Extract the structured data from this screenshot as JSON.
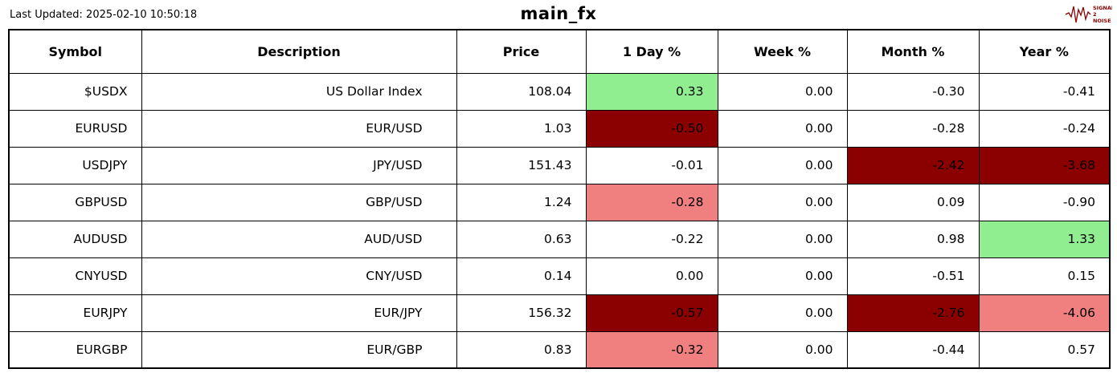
{
  "header": {
    "last_updated": "Last Updated: 2025-02-10 10:50:18",
    "logo": {
      "line1": "SIGNAL",
      "line2": "2",
      "line3": "NOISE"
    }
  },
  "colors": {
    "green": "#90ee90",
    "darkred": "#8b0000",
    "salmon": "#f08080",
    "border": "#000000"
  },
  "chart_data": {
    "type": "table",
    "title": "main_fx",
    "columns": [
      "Symbol",
      "Description",
      "Price",
      "1 Day %",
      "Week %",
      "Month %",
      "Year %"
    ],
    "column_keys": [
      "symbol",
      "description",
      "price",
      "day_pct",
      "week_pct",
      "month_pct",
      "year_pct"
    ],
    "rows": [
      {
        "cells": [
          "$USDX",
          "US Dollar Index",
          "108.04",
          "0.33",
          "0.00",
          "-0.30",
          "-0.41"
        ],
        "highlight": [
          "",
          "",
          "",
          "green",
          "",
          "",
          ""
        ]
      },
      {
        "cells": [
          "EURUSD",
          "EUR/USD",
          "1.03",
          "-0.50",
          "0.00",
          "-0.28",
          "-0.24"
        ],
        "highlight": [
          "",
          "",
          "",
          "darkred",
          "",
          "",
          ""
        ]
      },
      {
        "cells": [
          "USDJPY",
          "JPY/USD",
          "151.43",
          "-0.01",
          "0.00",
          "-2.42",
          "-3.68"
        ],
        "highlight": [
          "",
          "",
          "",
          "",
          "",
          "darkred",
          "darkred"
        ]
      },
      {
        "cells": [
          "GBPUSD",
          "GBP/USD",
          "1.24",
          "-0.28",
          "0.00",
          "0.09",
          "-0.90"
        ],
        "highlight": [
          "",
          "",
          "",
          "salmon",
          "",
          "",
          ""
        ]
      },
      {
        "cells": [
          "AUDUSD",
          "AUD/USD",
          "0.63",
          "-0.22",
          "0.00",
          "0.98",
          "1.33"
        ],
        "highlight": [
          "",
          "",
          "",
          "",
          "",
          "",
          "green"
        ]
      },
      {
        "cells": [
          "CNYUSD",
          "CNY/USD",
          "0.14",
          "0.00",
          "0.00",
          "-0.51",
          "0.15"
        ],
        "highlight": [
          "",
          "",
          "",
          "",
          "",
          "",
          ""
        ]
      },
      {
        "cells": [
          "EURJPY",
          "EUR/JPY",
          "156.32",
          "-0.57",
          "0.00",
          "-2.76",
          "-4.06"
        ],
        "highlight": [
          "",
          "",
          "",
          "darkred",
          "",
          "darkred",
          "salmon"
        ]
      },
      {
        "cells": [
          "EURGBP",
          "EUR/GBP",
          "0.83",
          "-0.32",
          "0.00",
          "-0.44",
          "0.57"
        ],
        "highlight": [
          "",
          "",
          "",
          "salmon",
          "",
          "",
          ""
        ]
      }
    ]
  }
}
